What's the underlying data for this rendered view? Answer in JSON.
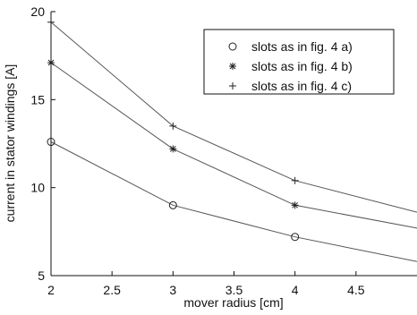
{
  "chart_data": {
    "type": "line",
    "title": "",
    "xlabel": "mover radius [cm]",
    "ylabel": "current in stator windings [A]",
    "xlim": [
      2,
      5
    ],
    "ylim": [
      5,
      20
    ],
    "xticks": [
      2,
      2.5,
      3,
      3.5,
      4,
      4.5
    ],
    "xtick_labels": [
      "2",
      "2.5",
      "3",
      "3.5",
      "4",
      "4.5"
    ],
    "yticks": [
      5,
      10,
      15,
      20
    ],
    "ytick_labels": [
      "5",
      "10",
      "15",
      "20"
    ],
    "grid": false,
    "legend_position": "top-right",
    "series": [
      {
        "name": "slots as in fig. 4 a)",
        "marker": "circle",
        "x": [
          2,
          3,
          4,
          5
        ],
        "y": [
          12.6,
          9.0,
          7.2,
          5.8
        ],
        "marker_x": [
          2,
          3,
          4
        ]
      },
      {
        "name": "slots as in fig. 4 b)",
        "marker": "star",
        "x": [
          2,
          3,
          4,
          5
        ],
        "y": [
          17.1,
          12.2,
          9.0,
          7.7
        ],
        "marker_x": [
          2,
          3,
          4
        ]
      },
      {
        "name": "slots as in fig. 4 c)",
        "marker": "plus",
        "x": [
          2,
          3,
          4,
          5
        ],
        "y": [
          19.4,
          13.5,
          10.4,
          8.6
        ],
        "marker_x": [
          2,
          3,
          4
        ]
      }
    ],
    "colors": {
      "line": "#555555",
      "axis": "#111111",
      "marker": "#222222"
    }
  }
}
